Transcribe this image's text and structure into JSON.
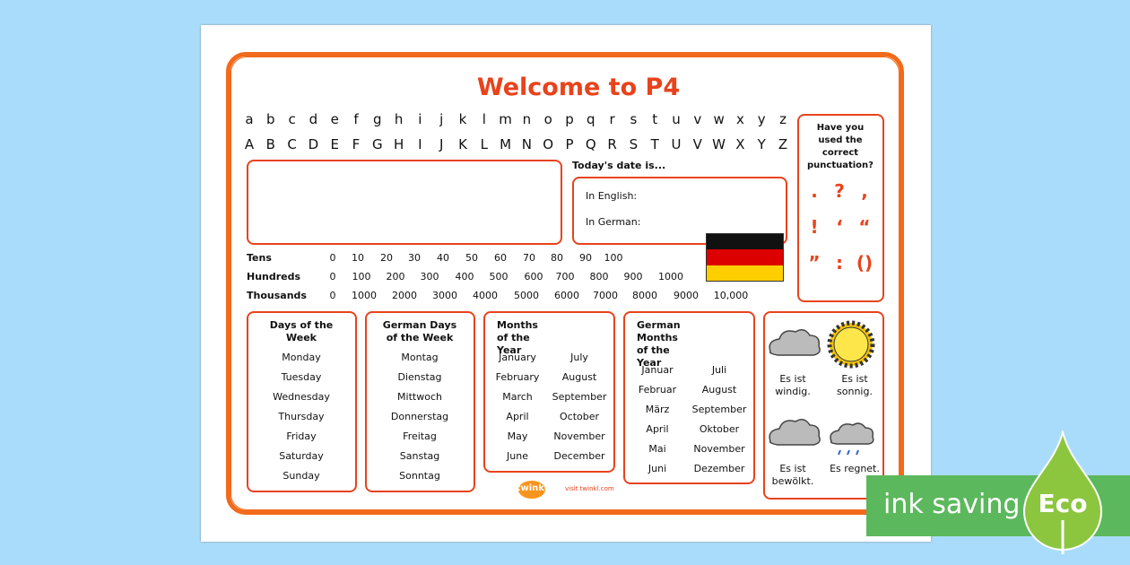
{
  "title": "Welcome to P4",
  "alphabet": {
    "lower": [
      "a",
      "b",
      "c",
      "d",
      "e",
      "f",
      "g",
      "h",
      "i",
      "j",
      "k",
      "l",
      "m",
      "n",
      "o",
      "p",
      "q",
      "r",
      "s",
      "t",
      "u",
      "v",
      "w",
      "x",
      "y",
      "z"
    ],
    "upper": [
      "A",
      "B",
      "C",
      "D",
      "E",
      "F",
      "G",
      "H",
      "I",
      "J",
      "K",
      "L",
      "M",
      "N",
      "O",
      "P",
      "Q",
      "R",
      "S",
      "T",
      "U",
      "V",
      "W",
      "X",
      "Y",
      "Z"
    ]
  },
  "date": {
    "heading": "Today's date is...",
    "english": "In English:",
    "german": "In German:"
  },
  "numbers": [
    {
      "label": "Tens",
      "values": [
        "0",
        "10",
        "20",
        "30",
        "40",
        "50",
        "60",
        "70",
        "80",
        "90",
        "100"
      ]
    },
    {
      "label": "Hundreds",
      "values": [
        "0",
        "100",
        "200",
        "300",
        "400",
        "500",
        "600",
        "700",
        "800",
        "900",
        "1000"
      ]
    },
    {
      "label": "Thousands",
      "values": [
        "0",
        "1000",
        "2000",
        "3000",
        "4000",
        "5000",
        "6000",
        "7000",
        "8000",
        "9000",
        "10,000"
      ]
    }
  ],
  "punctuation": {
    "question": "Have you used the correct punctuation?",
    "marks": [
      [
        ".",
        "?",
        ","
      ],
      [
        "!",
        "‘",
        "“"
      ],
      [
        "”",
        ":",
        "()"
      ]
    ]
  },
  "days": {
    "title": "Days of the Week",
    "items": [
      "Monday",
      "Tuesday",
      "Wednesday",
      "Thursday",
      "Friday",
      "Saturday",
      "Sunday"
    ]
  },
  "german_days": {
    "title": "German Days of the Week",
    "items": [
      "Montag",
      "Dienstag",
      "Mittwoch",
      "Donnerstag",
      "Freitag",
      "Sanstag",
      "Sonntag"
    ]
  },
  "months": {
    "title": "Months of the Year",
    "items": [
      [
        "January",
        "July"
      ],
      [
        "February",
        "August"
      ],
      [
        "March",
        "September"
      ],
      [
        "April",
        "October"
      ],
      [
        "May",
        "November"
      ],
      [
        "June",
        "December"
      ]
    ]
  },
  "german_months": {
    "title": "German Months of the Year",
    "items": [
      [
        "Januar",
        "Juli"
      ],
      [
        "Februar",
        "August"
      ],
      [
        "März",
        "September"
      ],
      [
        "April",
        "Oktober"
      ],
      [
        "Mai",
        "November"
      ],
      [
        "Juni",
        "Dezember"
      ]
    ]
  },
  "weather": [
    "Es ist windig.",
    "Es ist sonnig.",
    "Es ist bewölkt.",
    "Es regnet."
  ],
  "footer": {
    "logo": "twinkl",
    "link": "visit twinkl.com"
  },
  "badge": {
    "text": "ink saving",
    "eco": "Eco"
  }
}
